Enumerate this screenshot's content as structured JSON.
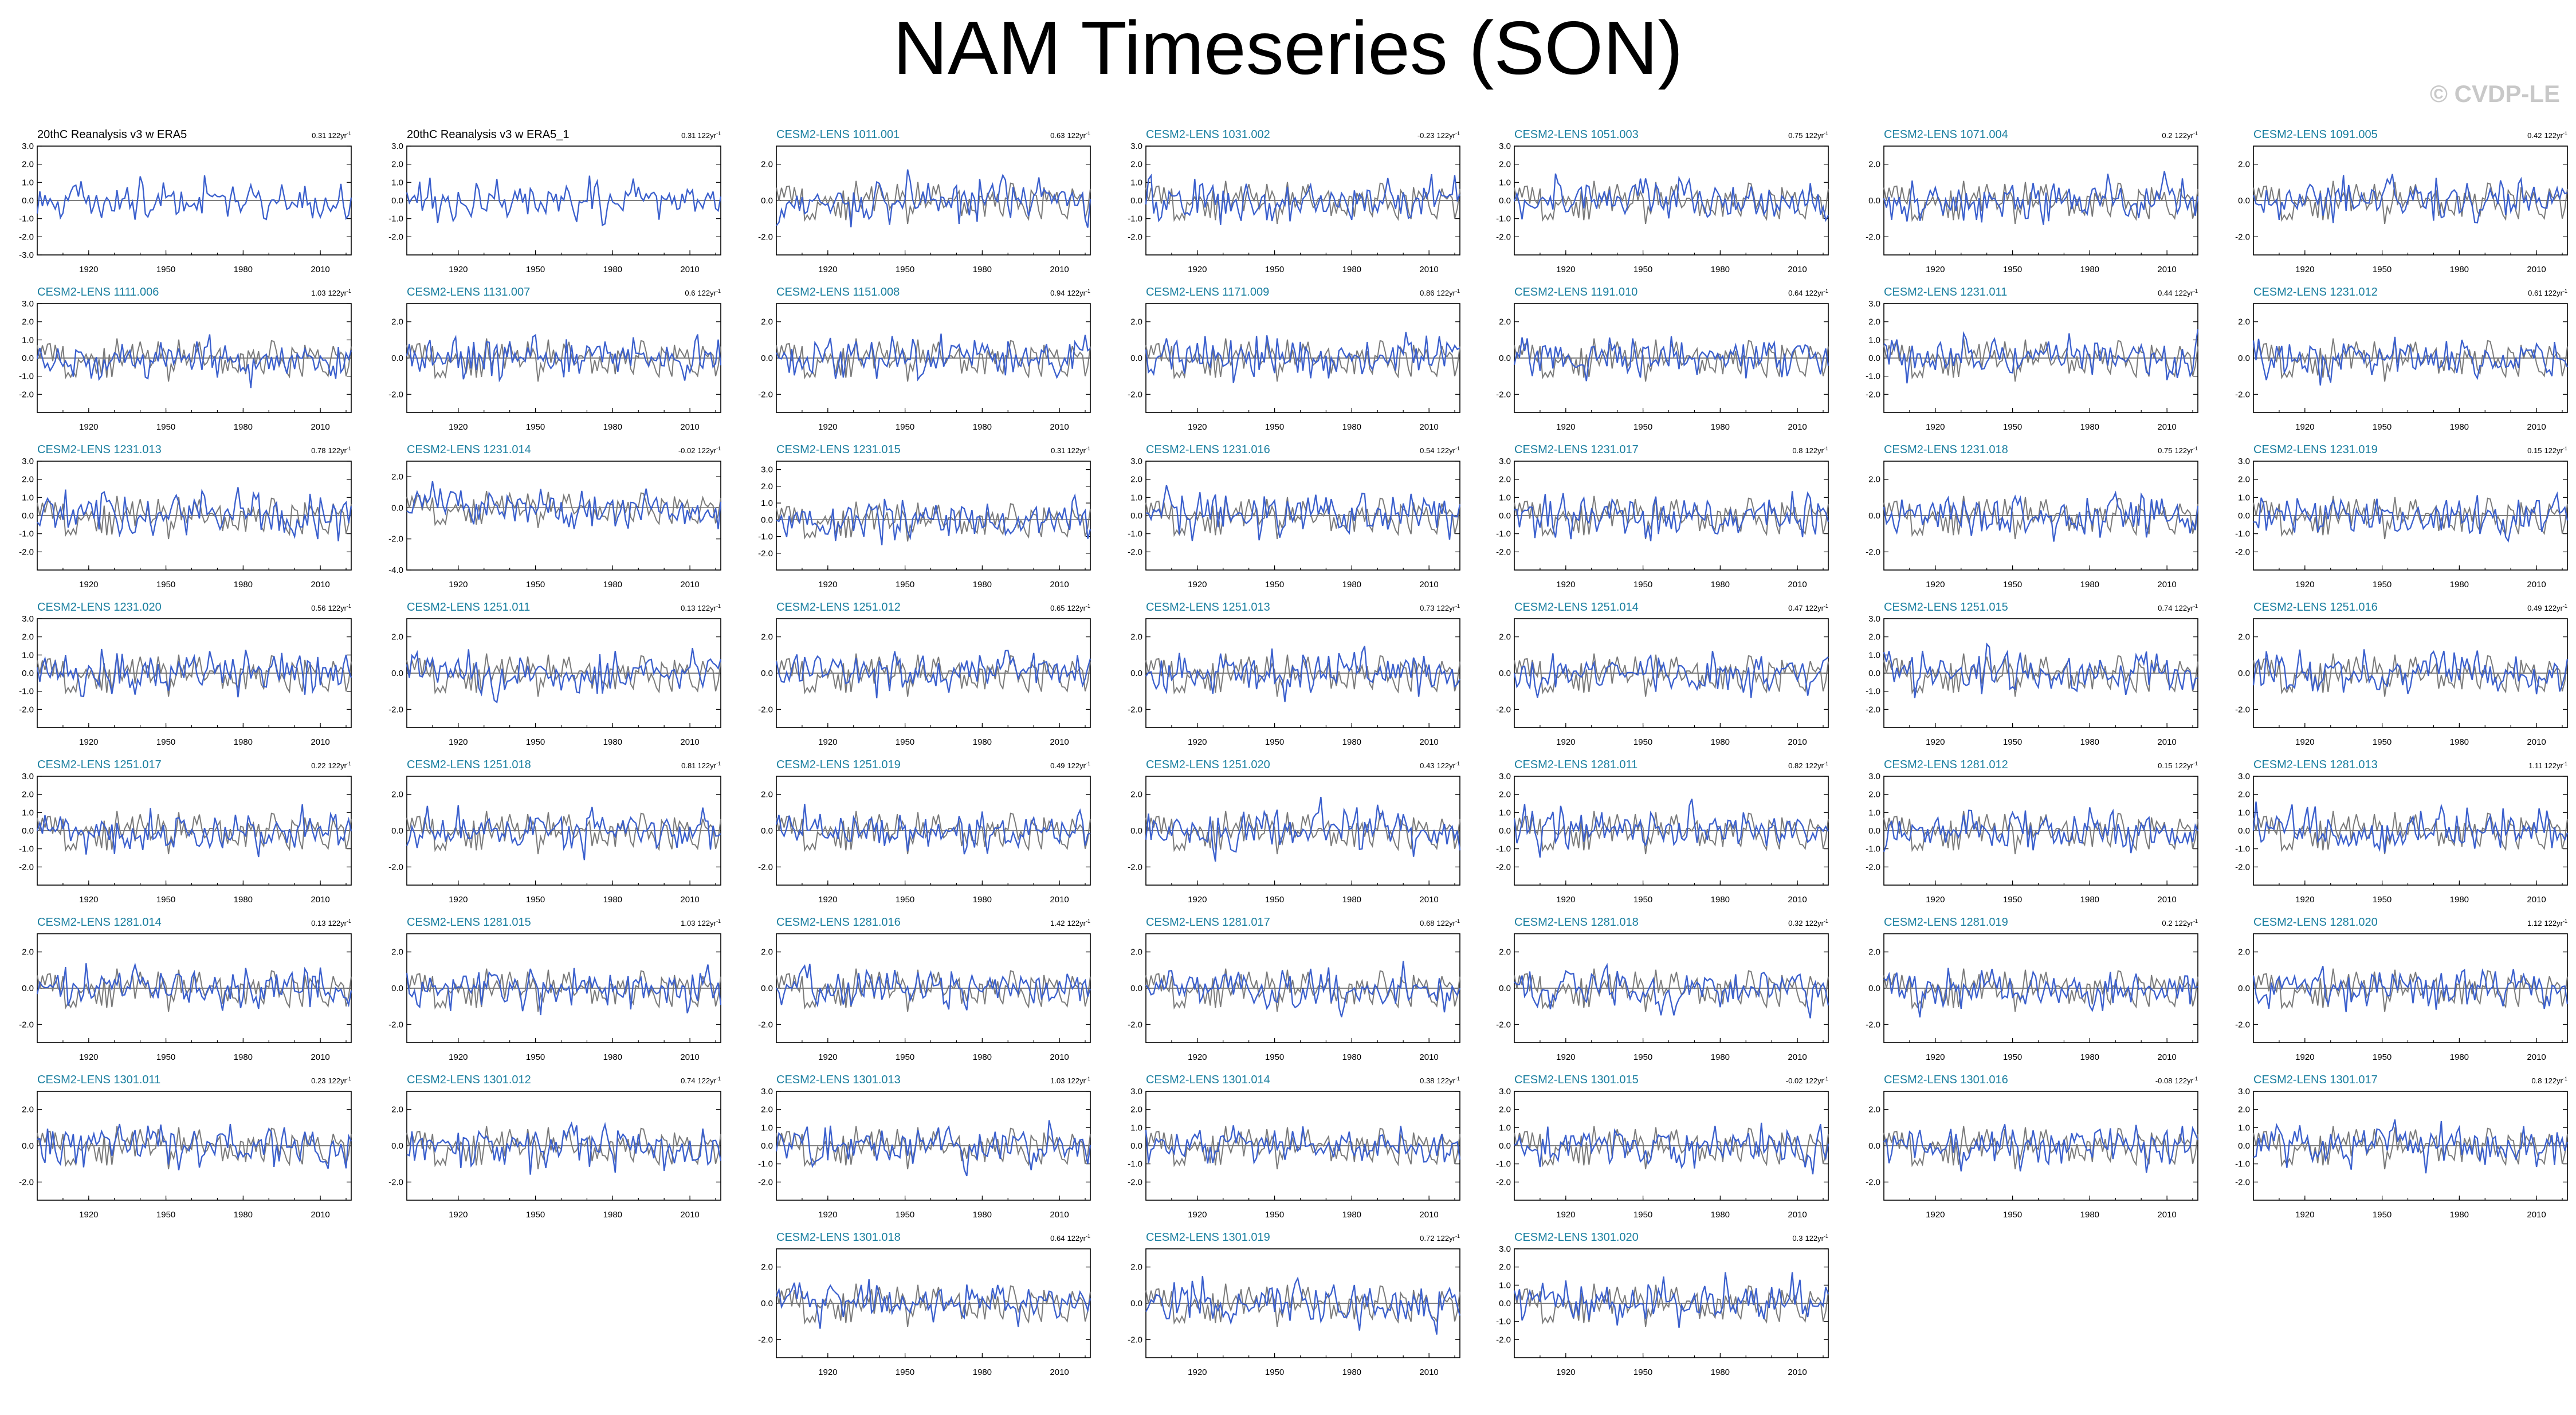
{
  "title": "NAM Timeseries (SON)",
  "copyright": "© CVDP-LE",
  "trend_unit": "122yr",
  "colors": {
    "ensemble": "#3a5fcd",
    "observed": "#7a7a7a",
    "member_title": "#1a7fa0"
  },
  "x_range": [
    1900,
    2022
  ],
  "x_ticks": [
    1920,
    1950,
    1980,
    2010
  ],
  "chart_data": [
    {
      "type": "line",
      "title": "20thC Reanalysis v3 w ERA5",
      "trend": "0.31",
      "observed": true,
      "y_ticks": [
        "3.0",
        "2.0",
        "1.0",
        "0.0",
        "-1.0",
        "-2.0",
        "-3.0"
      ],
      "ylim": [
        -3,
        3
      ],
      "seed": 11
    },
    {
      "type": "line",
      "title": "20thC Reanalysis v3 w ERA5_1",
      "trend": "0.31",
      "observed": true,
      "y_ticks": [
        "3.0",
        "2.0",
        "1.0",
        "0.0",
        "-1.0",
        "-2.0"
      ],
      "ylim": [
        -3,
        3
      ],
      "seed": 12
    },
    {
      "type": "line",
      "title": "CESM2-LENS 1011.001",
      "trend": "0.63",
      "y_ticks": [
        "2.0",
        "0.0",
        "-2.0"
      ],
      "ylim": [
        -3,
        3
      ],
      "seed": 13
    },
    {
      "type": "line",
      "title": "CESM2-LENS 1031.002",
      "trend": "-0.23",
      "y_ticks": [
        "3.0",
        "2.0",
        "1.0",
        "0.0",
        "-1.0",
        "-2.0"
      ],
      "ylim": [
        -3,
        3
      ],
      "seed": 14
    },
    {
      "type": "line",
      "title": "CESM2-LENS 1051.003",
      "trend": "0.75",
      "y_ticks": [
        "3.0",
        "2.0",
        "1.0",
        "0.0",
        "-1.0",
        "-2.0"
      ],
      "ylim": [
        -3,
        3
      ],
      "seed": 15
    },
    {
      "type": "line",
      "title": "CESM2-LENS 1071.004",
      "trend": "0.2",
      "y_ticks": [
        "2.0",
        "0.0",
        "-2.0"
      ],
      "ylim": [
        -3,
        3
      ],
      "seed": 16
    },
    {
      "type": "line",
      "title": "CESM2-LENS 1091.005",
      "trend": "0.42",
      "y_ticks": [
        "2.0",
        "0.0",
        "-2.0"
      ],
      "ylim": [
        -3,
        3
      ],
      "seed": 17
    },
    {
      "type": "line",
      "title": "CESM2-LENS 1111.006",
      "trend": "1.03",
      "y_ticks": [
        "3.0",
        "2.0",
        "1.0",
        "0.0",
        "-1.0",
        "-2.0"
      ],
      "ylim": [
        -3,
        3
      ],
      "seed": 21
    },
    {
      "type": "line",
      "title": "CESM2-LENS 1131.007",
      "trend": "0.6",
      "y_ticks": [
        "2.0",
        "0.0",
        "-2.0"
      ],
      "ylim": [
        -3,
        3
      ],
      "seed": 22
    },
    {
      "type": "line",
      "title": "CESM2-LENS 1151.008",
      "trend": "0.94",
      "y_ticks": [
        "2.0",
        "0.0",
        "-2.0"
      ],
      "ylim": [
        -3,
        3
      ],
      "seed": 23
    },
    {
      "type": "line",
      "title": "CESM2-LENS 1171.009",
      "trend": "0.86",
      "y_ticks": [
        "2.0",
        "0.0",
        "-2.0"
      ],
      "ylim": [
        -3,
        3
      ],
      "seed": 24
    },
    {
      "type": "line",
      "title": "CESM2-LENS 1191.010",
      "trend": "0.64",
      "y_ticks": [
        "2.0",
        "0.0",
        "-2.0"
      ],
      "ylim": [
        -3,
        3
      ],
      "seed": 25
    },
    {
      "type": "line",
      "title": "CESM2-LENS 1231.011",
      "trend": "0.44",
      "y_ticks": [
        "3.0",
        "2.0",
        "1.0",
        "0.0",
        "-1.0",
        "-2.0"
      ],
      "ylim": [
        -3,
        3
      ],
      "seed": 26
    },
    {
      "type": "line",
      "title": "CESM2-LENS 1231.012",
      "trend": "0.61",
      "y_ticks": [
        "2.0",
        "0.0",
        "-2.0"
      ],
      "ylim": [
        -3,
        3
      ],
      "seed": 27
    },
    {
      "type": "line",
      "title": "CESM2-LENS 1231.013",
      "trend": "0.78",
      "y_ticks": [
        "3.0",
        "2.0",
        "1.0",
        "0.0",
        "-1.0",
        "-2.0"
      ],
      "ylim": [
        -3,
        3
      ],
      "seed": 31
    },
    {
      "type": "line",
      "title": "CESM2-LENS 1231.014",
      "trend": "-0.02",
      "y_ticks": [
        "2.0",
        "0.0",
        "-2.0",
        "-4.0"
      ],
      "ylim": [
        -4,
        3
      ],
      "seed": 32
    },
    {
      "type": "line",
      "title": "CESM2-LENS 1231.015",
      "trend": "0.31",
      "y_ticks": [
        "3.0",
        "2.0",
        "1.0",
        "0.0",
        "-1.0",
        "-2.0"
      ],
      "ylim": [
        -3,
        3.5
      ],
      "seed": 33
    },
    {
      "type": "line",
      "title": "CESM2-LENS 1231.016",
      "trend": "0.54",
      "y_ticks": [
        "3.0",
        "2.0",
        "1.0",
        "0.0",
        "-1.0",
        "-2.0"
      ],
      "ylim": [
        -3,
        3
      ],
      "seed": 34
    },
    {
      "type": "line",
      "title": "CESM2-LENS 1231.017",
      "trend": "0.8",
      "y_ticks": [
        "3.0",
        "2.0",
        "1.0",
        "0.0",
        "-1.0",
        "-2.0"
      ],
      "ylim": [
        -3,
        3
      ],
      "seed": 35
    },
    {
      "type": "line",
      "title": "CESM2-LENS 1231.018",
      "trend": "0.75",
      "y_ticks": [
        "2.0",
        "0.0",
        "-2.0"
      ],
      "ylim": [
        -3,
        3
      ],
      "seed": 36
    },
    {
      "type": "line",
      "title": "CESM2-LENS 1231.019",
      "trend": "0.15",
      "y_ticks": [
        "3.0",
        "2.0",
        "1.0",
        "0.0",
        "-1.0",
        "-2.0"
      ],
      "ylim": [
        -3,
        3
      ],
      "seed": 37
    },
    {
      "type": "line",
      "title": "CESM2-LENS 1231.020",
      "trend": "0.56",
      "y_ticks": [
        "3.0",
        "2.0",
        "1.0",
        "0.0",
        "-1.0",
        "-2.0"
      ],
      "ylim": [
        -3,
        3
      ],
      "seed": 41
    },
    {
      "type": "line",
      "title": "CESM2-LENS 1251.011",
      "trend": "0.13",
      "y_ticks": [
        "2.0",
        "0.0",
        "-2.0"
      ],
      "ylim": [
        -3,
        3
      ],
      "seed": 42
    },
    {
      "type": "line",
      "title": "CESM2-LENS 1251.012",
      "trend": "0.65",
      "y_ticks": [
        "2.0",
        "0.0",
        "-2.0"
      ],
      "ylim": [
        -3,
        3
      ],
      "seed": 43
    },
    {
      "type": "line",
      "title": "CESM2-LENS 1251.013",
      "trend": "0.73",
      "y_ticks": [
        "2.0",
        "0.0",
        "-2.0"
      ],
      "ylim": [
        -3,
        3
      ],
      "seed": 44
    },
    {
      "type": "line",
      "title": "CESM2-LENS 1251.014",
      "trend": "0.47",
      "y_ticks": [
        "2.0",
        "0.0",
        "-2.0"
      ],
      "ylim": [
        -3,
        3
      ],
      "seed": 45
    },
    {
      "type": "line",
      "title": "CESM2-LENS 1251.015",
      "trend": "0.74",
      "y_ticks": [
        "3.0",
        "2.0",
        "1.0",
        "0.0",
        "-1.0",
        "-2.0"
      ],
      "ylim": [
        -3,
        3
      ],
      "seed": 46
    },
    {
      "type": "line",
      "title": "CESM2-LENS 1251.016",
      "trend": "0.49",
      "y_ticks": [
        "2.0",
        "0.0",
        "-2.0"
      ],
      "ylim": [
        -3,
        3
      ],
      "seed": 47
    },
    {
      "type": "line",
      "title": "CESM2-LENS 1251.017",
      "trend": "0.22",
      "y_ticks": [
        "3.0",
        "2.0",
        "1.0",
        "0.0",
        "-1.0",
        "-2.0"
      ],
      "ylim": [
        -3,
        3
      ],
      "seed": 51
    },
    {
      "type": "line",
      "title": "CESM2-LENS 1251.018",
      "trend": "0.81",
      "y_ticks": [
        "2.0",
        "0.0",
        "-2.0"
      ],
      "ylim": [
        -3,
        3
      ],
      "seed": 52
    },
    {
      "type": "line",
      "title": "CESM2-LENS 1251.019",
      "trend": "0.49",
      "y_ticks": [
        "2.0",
        "0.0",
        "-2.0"
      ],
      "ylim": [
        -3,
        3
      ],
      "seed": 53
    },
    {
      "type": "line",
      "title": "CESM2-LENS 1251.020",
      "trend": "0.43",
      "y_ticks": [
        "2.0",
        "0.0",
        "-2.0"
      ],
      "ylim": [
        -3,
        3
      ],
      "seed": 54
    },
    {
      "type": "line",
      "title": "CESM2-LENS 1281.011",
      "trend": "0.82",
      "y_ticks": [
        "3.0",
        "2.0",
        "1.0",
        "0.0",
        "-1.0",
        "-2.0"
      ],
      "ylim": [
        -3,
        3
      ],
      "seed": 55
    },
    {
      "type": "line",
      "title": "CESM2-LENS 1281.012",
      "trend": "0.15",
      "y_ticks": [
        "3.0",
        "2.0",
        "1.0",
        "0.0",
        "-1.0",
        "-2.0"
      ],
      "ylim": [
        -3,
        3
      ],
      "seed": 56
    },
    {
      "type": "line",
      "title": "CESM2-LENS 1281.013",
      "trend": "1.11",
      "y_ticks": [
        "3.0",
        "2.0",
        "1.0",
        "0.0",
        "-1.0",
        "-2.0"
      ],
      "ylim": [
        -3,
        3
      ],
      "seed": 57
    },
    {
      "type": "line",
      "title": "CESM2-LENS 1281.014",
      "trend": "0.13",
      "y_ticks": [
        "2.0",
        "0.0",
        "-2.0"
      ],
      "ylim": [
        -3,
        3
      ],
      "seed": 61
    },
    {
      "type": "line",
      "title": "CESM2-LENS 1281.015",
      "trend": "1.03",
      "y_ticks": [
        "2.0",
        "0.0",
        "-2.0"
      ],
      "ylim": [
        -3,
        3
      ],
      "seed": 62
    },
    {
      "type": "line",
      "title": "CESM2-LENS 1281.016",
      "trend": "1.42",
      "y_ticks": [
        "2.0",
        "0.0",
        "-2.0"
      ],
      "ylim": [
        -3,
        3
      ],
      "seed": 63
    },
    {
      "type": "line",
      "title": "CESM2-LENS 1281.017",
      "trend": "0.68",
      "y_ticks": [
        "2.0",
        "0.0",
        "-2.0"
      ],
      "ylim": [
        -3,
        3
      ],
      "seed": 64
    },
    {
      "type": "line",
      "title": "CESM2-LENS 1281.018",
      "trend": "0.32",
      "y_ticks": [
        "2.0",
        "0.0",
        "-2.0"
      ],
      "ylim": [
        -3,
        3
      ],
      "seed": 65
    },
    {
      "type": "line",
      "title": "CESM2-LENS 1281.019",
      "trend": "0.2",
      "y_ticks": [
        "2.0",
        "0.0",
        "-2.0"
      ],
      "ylim": [
        -3,
        3
      ],
      "seed": 66
    },
    {
      "type": "line",
      "title": "CESM2-LENS 1281.020",
      "trend": "1.12",
      "y_ticks": [
        "2.0",
        "0.0",
        "-2.0"
      ],
      "ylim": [
        -3,
        3
      ],
      "seed": 67
    },
    {
      "type": "line",
      "title": "CESM2-LENS 1301.011",
      "trend": "0.23",
      "y_ticks": [
        "2.0",
        "0.0",
        "-2.0"
      ],
      "ylim": [
        -3,
        3
      ],
      "seed": 71
    },
    {
      "type": "line",
      "title": "CESM2-LENS 1301.012",
      "trend": "0.74",
      "y_ticks": [
        "2.0",
        "0.0",
        "-2.0"
      ],
      "ylim": [
        -3,
        3
      ],
      "seed": 72
    },
    {
      "type": "line",
      "title": "CESM2-LENS 1301.013",
      "trend": "1.03",
      "y_ticks": [
        "3.0",
        "2.0",
        "1.0",
        "0.0",
        "-1.0",
        "-2.0"
      ],
      "ylim": [
        -3,
        3
      ],
      "seed": 73
    },
    {
      "type": "line",
      "title": "CESM2-LENS 1301.014",
      "trend": "0.38",
      "y_ticks": [
        "3.0",
        "2.0",
        "1.0",
        "0.0",
        "-1.0",
        "-2.0"
      ],
      "ylim": [
        -3,
        3
      ],
      "seed": 74
    },
    {
      "type": "line",
      "title": "CESM2-LENS 1301.015",
      "trend": "-0.02",
      "y_ticks": [
        "3.0",
        "2.0",
        "1.0",
        "0.0",
        "-1.0",
        "-2.0"
      ],
      "ylim": [
        -3,
        3
      ],
      "seed": 75
    },
    {
      "type": "line",
      "title": "CESM2-LENS 1301.016",
      "trend": "-0.08",
      "y_ticks": [
        "2.0",
        "0.0",
        "-2.0"
      ],
      "ylim": [
        -3,
        3
      ],
      "seed": 76
    },
    {
      "type": "line",
      "title": "CESM2-LENS 1301.017",
      "trend": "0.8",
      "y_ticks": [
        "3.0",
        "2.0",
        "1.0",
        "0.0",
        "-1.0",
        "-2.0"
      ],
      "ylim": [
        -3,
        3
      ],
      "seed": 77
    },
    {
      "type": "line",
      "title": "CESM2-LENS 1301.018",
      "trend": "0.64",
      "y_ticks": [
        "2.0",
        "0.0",
        "-2.0"
      ],
      "ylim": [
        -3,
        3
      ],
      "seed": 83
    },
    {
      "type": "line",
      "title": "CESM2-LENS 1301.019",
      "trend": "0.72",
      "y_ticks": [
        "2.0",
        "0.0",
        "-2.0"
      ],
      "ylim": [
        -3,
        3
      ],
      "seed": 84
    },
    {
      "type": "line",
      "title": "CESM2-LENS 1301.020",
      "trend": "0.3",
      "y_ticks": [
        "3.0",
        "2.0",
        "1.0",
        "0.0",
        "-1.0",
        "-2.0"
      ],
      "ylim": [
        -3,
        3
      ],
      "seed": 85
    }
  ]
}
